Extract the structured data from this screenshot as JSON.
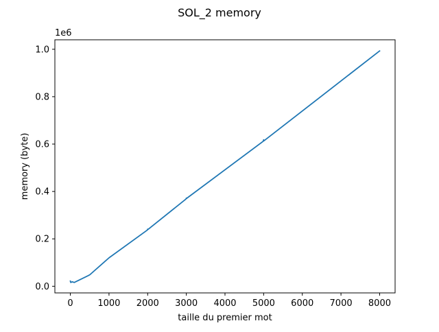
{
  "chart_data": {
    "type": "line",
    "title": "SOL_2 memory",
    "xlabel": "taille du premier mot",
    "ylabel": "memory (byte)",
    "y_multiplier": "1e6",
    "xlim": [
      -400,
      8400
    ],
    "ylim": [
      -28000,
      1040000
    ],
    "grid": false,
    "x_ticks": [
      {
        "value": 0,
        "label": "0"
      },
      {
        "value": 1000,
        "label": "1000"
      },
      {
        "value": 2000,
        "label": "2000"
      },
      {
        "value": 3000,
        "label": "3000"
      },
      {
        "value": 4000,
        "label": "4000"
      },
      {
        "value": 5000,
        "label": "5000"
      },
      {
        "value": 6000,
        "label": "6000"
      },
      {
        "value": 7000,
        "label": "7000"
      },
      {
        "value": 8000,
        "label": "8000"
      }
    ],
    "y_ticks": [
      {
        "value": 0,
        "label": "0.0"
      },
      {
        "value": 200000,
        "label": "0.2"
      },
      {
        "value": 400000,
        "label": "0.4"
      },
      {
        "value": 600000,
        "label": "0.6"
      },
      {
        "value": 800000,
        "label": "0.8"
      },
      {
        "value": 1000000,
        "label": "1.0"
      }
    ],
    "series": [
      {
        "color": "#1f77b4",
        "x": [
          0,
          10,
          50,
          100,
          500,
          1000,
          1990,
          2000,
          2010,
          2990,
          3000,
          3010,
          4990,
          5000,
          5010,
          8000
        ],
        "y": [
          22000,
          16000,
          19000,
          16000,
          48000,
          120000,
          237000,
          241000,
          240000,
          368000,
          372000,
          371000,
          612000,
          618000,
          614000,
          993000
        ]
      }
    ]
  }
}
